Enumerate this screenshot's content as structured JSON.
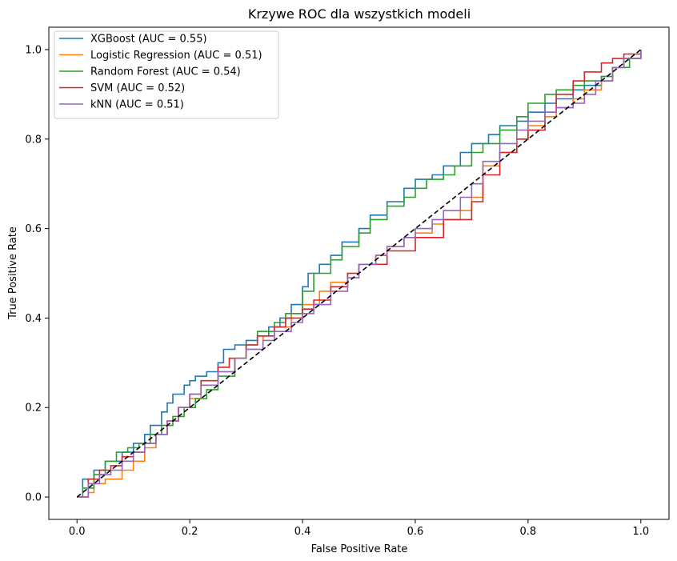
{
  "chart_data": {
    "type": "line",
    "title": "Krzywe ROC dla wszystkich modeli",
    "xlabel": "False Positive Rate",
    "ylabel": "True Positive Rate",
    "xlim": [
      -0.05,
      1.05
    ],
    "ylim": [
      -0.05,
      1.05
    ],
    "x_ticks": [
      "0.0",
      "0.2",
      "0.4",
      "0.6",
      "0.8",
      "1.0"
    ],
    "y_ticks": [
      "0.0",
      "0.2",
      "0.4",
      "0.6",
      "0.8",
      "1.0"
    ],
    "grid": false,
    "legend_position": "upper-left",
    "series": [
      {
        "name": "XGBoost (AUC = 0.55)",
        "color": "#1f77b4",
        "x": [
          0.0,
          0.01,
          0.03,
          0.05,
          0.08,
          0.1,
          0.12,
          0.13,
          0.15,
          0.16,
          0.17,
          0.19,
          0.2,
          0.21,
          0.23,
          0.25,
          0.26,
          0.28,
          0.3,
          0.32,
          0.34,
          0.36,
          0.38,
          0.4,
          0.41,
          0.43,
          0.45,
          0.47,
          0.5,
          0.52,
          0.55,
          0.58,
          0.6,
          0.63,
          0.65,
          0.68,
          0.7,
          0.73,
          0.75,
          0.78,
          0.8,
          0.83,
          0.85,
          0.88,
          0.9,
          0.93,
          0.95,
          0.97,
          1.0
        ],
        "y": [
          0.0,
          0.04,
          0.06,
          0.08,
          0.1,
          0.12,
          0.14,
          0.16,
          0.19,
          0.21,
          0.23,
          0.25,
          0.26,
          0.27,
          0.28,
          0.3,
          0.33,
          0.34,
          0.35,
          0.36,
          0.38,
          0.4,
          0.43,
          0.47,
          0.5,
          0.52,
          0.54,
          0.57,
          0.6,
          0.63,
          0.66,
          0.69,
          0.71,
          0.72,
          0.74,
          0.77,
          0.79,
          0.81,
          0.83,
          0.84,
          0.86,
          0.88,
          0.89,
          0.91,
          0.92,
          0.94,
          0.96,
          0.98,
          1.0
        ]
      },
      {
        "name": "Logistic Regression (AUC = 0.51)",
        "color": "#ff7f0e",
        "x": [
          0.0,
          0.02,
          0.03,
          0.05,
          0.08,
          0.1,
          0.12,
          0.14,
          0.16,
          0.18,
          0.2,
          0.22,
          0.25,
          0.28,
          0.3,
          0.33,
          0.35,
          0.38,
          0.4,
          0.43,
          0.45,
          0.48,
          0.5,
          0.53,
          0.55,
          0.58,
          0.6,
          0.63,
          0.65,
          0.68,
          0.7,
          0.72,
          0.75,
          0.78,
          0.8,
          0.83,
          0.85,
          0.88,
          0.9,
          0.93,
          0.95,
          0.97,
          1.0
        ],
        "y": [
          0.0,
          0.01,
          0.03,
          0.04,
          0.06,
          0.08,
          0.11,
          0.14,
          0.17,
          0.2,
          0.22,
          0.25,
          0.28,
          0.31,
          0.33,
          0.36,
          0.38,
          0.41,
          0.43,
          0.46,
          0.48,
          0.5,
          0.52,
          0.54,
          0.56,
          0.58,
          0.59,
          0.61,
          0.62,
          0.64,
          0.67,
          0.74,
          0.77,
          0.8,
          0.83,
          0.85,
          0.87,
          0.89,
          0.91,
          0.93,
          0.96,
          0.98,
          1.0
        ]
      },
      {
        "name": "Random Forest (AUC = 0.54)",
        "color": "#2ca02c",
        "x": [
          0.0,
          0.01,
          0.03,
          0.05,
          0.07,
          0.09,
          0.11,
          0.13,
          0.15,
          0.17,
          0.19,
          0.21,
          0.23,
          0.25,
          0.28,
          0.3,
          0.32,
          0.35,
          0.37,
          0.4,
          0.42,
          0.45,
          0.47,
          0.5,
          0.52,
          0.55,
          0.58,
          0.6,
          0.62,
          0.65,
          0.67,
          0.7,
          0.72,
          0.75,
          0.78,
          0.8,
          0.83,
          0.85,
          0.88,
          0.9,
          0.93,
          0.95,
          0.98,
          1.0
        ],
        "y": [
          0.0,
          0.02,
          0.05,
          0.08,
          0.1,
          0.11,
          0.12,
          0.14,
          0.16,
          0.18,
          0.2,
          0.22,
          0.24,
          0.27,
          0.31,
          0.34,
          0.37,
          0.39,
          0.41,
          0.46,
          0.5,
          0.53,
          0.56,
          0.59,
          0.62,
          0.65,
          0.67,
          0.69,
          0.71,
          0.72,
          0.74,
          0.77,
          0.79,
          0.82,
          0.85,
          0.88,
          0.9,
          0.91,
          0.92,
          0.93,
          0.94,
          0.96,
          0.98,
          1.0
        ]
      },
      {
        "name": "SVM (AUC = 0.52)",
        "color": "#d62728",
        "x": [
          0.0,
          0.02,
          0.04,
          0.06,
          0.08,
          0.1,
          0.12,
          0.14,
          0.16,
          0.18,
          0.2,
          0.22,
          0.25,
          0.27,
          0.3,
          0.32,
          0.35,
          0.37,
          0.4,
          0.42,
          0.45,
          0.48,
          0.5,
          0.55,
          0.6,
          0.65,
          0.7,
          0.72,
          0.75,
          0.78,
          0.8,
          0.83,
          0.85,
          0.88,
          0.9,
          0.93,
          0.95,
          0.97,
          1.0
        ],
        "y": [
          0.0,
          0.04,
          0.06,
          0.07,
          0.09,
          0.1,
          0.12,
          0.14,
          0.17,
          0.2,
          0.23,
          0.26,
          0.29,
          0.31,
          0.34,
          0.36,
          0.38,
          0.4,
          0.42,
          0.44,
          0.47,
          0.5,
          0.52,
          0.55,
          0.58,
          0.62,
          0.66,
          0.72,
          0.77,
          0.8,
          0.82,
          0.86,
          0.9,
          0.93,
          0.95,
          0.97,
          0.98,
          0.99,
          1.0
        ]
      },
      {
        "name": "kNN (AUC = 0.51)",
        "color": "#9467bd",
        "x": [
          0.0,
          0.02,
          0.04,
          0.06,
          0.08,
          0.1,
          0.12,
          0.14,
          0.16,
          0.18,
          0.2,
          0.22,
          0.25,
          0.28,
          0.3,
          0.33,
          0.35,
          0.38,
          0.4,
          0.42,
          0.45,
          0.48,
          0.5,
          0.53,
          0.55,
          0.58,
          0.6,
          0.63,
          0.65,
          0.68,
          0.7,
          0.72,
          0.75,
          0.78,
          0.8,
          0.83,
          0.85,
          0.88,
          0.9,
          0.92,
          0.95,
          0.97,
          1.0
        ],
        "y": [
          0.0,
          0.03,
          0.05,
          0.06,
          0.08,
          0.1,
          0.12,
          0.14,
          0.17,
          0.2,
          0.23,
          0.25,
          0.28,
          0.31,
          0.33,
          0.35,
          0.37,
          0.39,
          0.41,
          0.43,
          0.46,
          0.49,
          0.52,
          0.54,
          0.56,
          0.58,
          0.6,
          0.62,
          0.64,
          0.67,
          0.7,
          0.75,
          0.79,
          0.82,
          0.84,
          0.86,
          0.87,
          0.88,
          0.9,
          0.93,
          0.96,
          0.98,
          1.0
        ]
      }
    ],
    "reference_line": {
      "x": [
        0,
        1
      ],
      "y": [
        0,
        1
      ],
      "color": "#000000",
      "style": "dashed"
    }
  }
}
